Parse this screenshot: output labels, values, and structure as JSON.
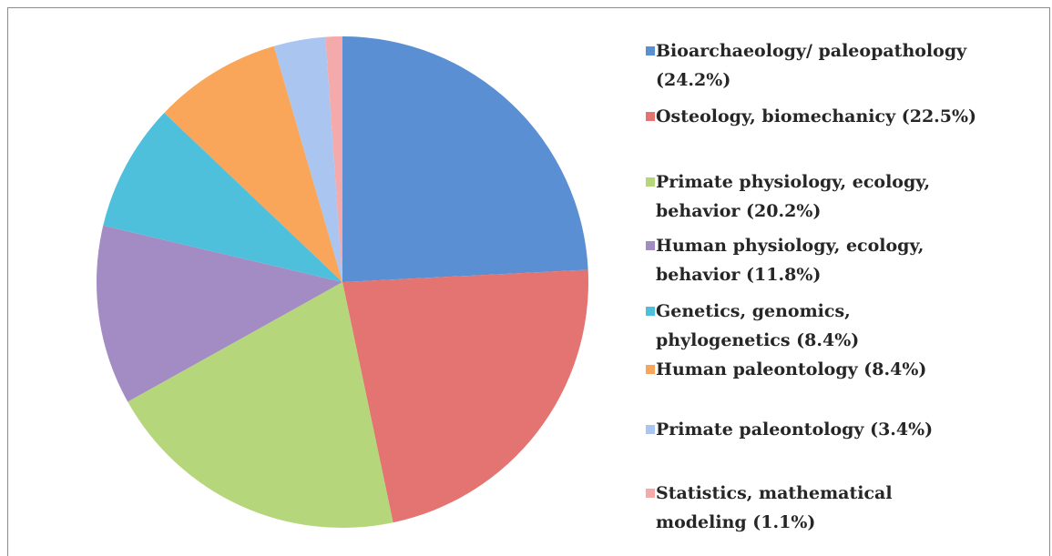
{
  "chart_data": {
    "type": "pie",
    "categories": [
      "Bioarchaeology/ paleopathology (24.2%)",
      "Osteology, biomechanicy (22.5%)",
      "Primate physiology, ecology, behavior (20.2%)",
      "Human physiology, ecology, behavior (11.8%)",
      "Genetics, genomics, phylogenetics (8.4%)",
      "Human paleontology (8.4%)",
      "Primate paleontology (3.4%)",
      "Statistics, mathematical modeling (1.1%)"
    ],
    "values": [
      24.2,
      22.5,
      20.2,
      11.8,
      8.4,
      8.4,
      3.4,
      1.1
    ],
    "colors": [
      "#5b8fd3",
      "#e37471",
      "#b5d67a",
      "#a38cc4",
      "#4fc0dc",
      "#f9a55a",
      "#a9c5f0",
      "#f4aaaa"
    ],
    "legend": "right"
  }
}
